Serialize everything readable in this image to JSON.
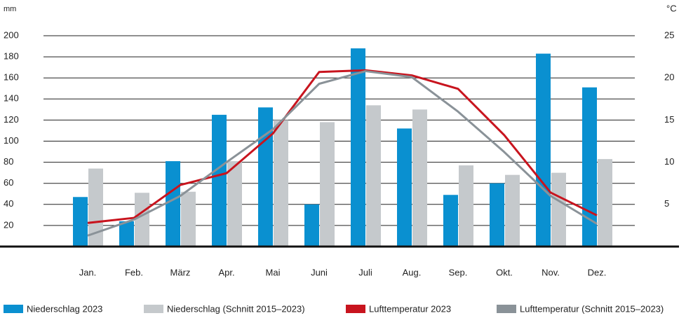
{
  "chart_data": {
    "type": "bar",
    "y_label": "mm",
    "y2_label": "°C",
    "categories": [
      "Jan.",
      "Feb.",
      "März",
      "Apr.",
      "Mai",
      "Juni",
      "Juli",
      "Aug.",
      "Sep.",
      "Okt.",
      "Nov.",
      "Dez."
    ],
    "series": [
      {
        "name": "Niederschlag 2023",
        "type": "bar",
        "color": "#0a90d0",
        "values": [
          47,
          24,
          81,
          125,
          132,
          40,
          188,
          112,
          49,
          60,
          183,
          151
        ]
      },
      {
        "name": "Niederschlag (Schnitt 2015–2023)",
        "type": "bar",
        "color": "#c5c9cc",
        "values": [
          74,
          51,
          52,
          81,
          120,
          118,
          134,
          130,
          77,
          68,
          70,
          83
        ]
      },
      {
        "name": "Lufttemperatur 2023",
        "type": "line",
        "axis": "y2",
        "color": "#c8141e",
        "values": [
          2.8,
          3.4,
          7.3,
          8.7,
          13.4,
          20.7,
          20.9,
          20.3,
          18.7,
          13.2,
          6.4,
          3.7
        ]
      },
      {
        "name": "Lufttemperatur (Schnitt 2015–2023)",
        "type": "line",
        "axis": "y2",
        "color": "#8a9298",
        "values": [
          1.3,
          3.2,
          6.0,
          10.0,
          13.9,
          19.3,
          20.8,
          20.1,
          16.0,
          11.2,
          6.0,
          2.7
        ]
      }
    ],
    "ylim": [
      0,
      200
    ],
    "yticks": [
      20,
      40,
      60,
      80,
      100,
      120,
      140,
      160,
      180,
      200
    ],
    "y2lim": [
      0,
      25
    ],
    "y2ticks": [
      5,
      10,
      15,
      20,
      25
    ],
    "grid": true,
    "legend": "bottom"
  }
}
